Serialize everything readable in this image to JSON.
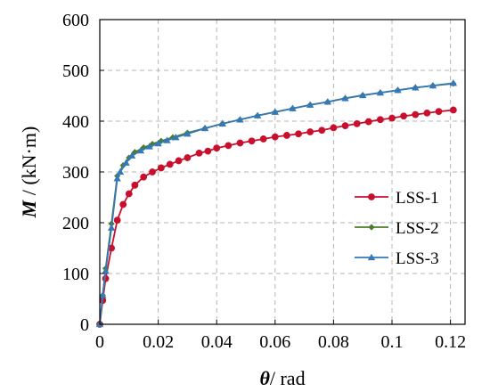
{
  "chart_data": {
    "type": "line",
    "xlabel": {
      "symbol": "θ",
      "rest": "/ rad"
    },
    "ylabel": {
      "symbol": "M",
      "rest": " / (kN·m)"
    },
    "xlim": [
      0,
      0.125
    ],
    "ylim": [
      0,
      600
    ],
    "x_ticks": [
      "0",
      "0.02",
      "0.04",
      "0.06",
      "0.08",
      "0.1",
      "0.12"
    ],
    "x_tick_values": [
      0,
      0.02,
      0.04,
      0.06,
      0.08,
      0.1,
      0.12
    ],
    "y_ticks": [
      "0",
      "100",
      "200",
      "300",
      "400",
      "500",
      "600"
    ],
    "y_tick_values": [
      0,
      100,
      200,
      300,
      400,
      500,
      600
    ],
    "grid": true,
    "legend_position": "right",
    "series": [
      {
        "name": "LSS-1",
        "color": "#c8102e",
        "marker": "circle",
        "x": [
          0,
          0.001,
          0.002,
          0.004,
          0.006,
          0.008,
          0.01,
          0.012,
          0.015,
          0.018,
          0.021,
          0.024,
          0.027,
          0.03,
          0.034,
          0.037,
          0.04,
          0.044,
          0.048,
          0.052,
          0.056,
          0.06,
          0.064,
          0.068,
          0.072,
          0.076,
          0.08,
          0.084,
          0.088,
          0.092,
          0.096,
          0.1,
          0.104,
          0.108,
          0.112,
          0.116,
          0.121
        ],
        "y": [
          0,
          47,
          90,
          150,
          205,
          236,
          257,
          274,
          290,
          300,
          308,
          315,
          322,
          328,
          337,
          341,
          347,
          352,
          357,
          361,
          365,
          369,
          372,
          375,
          379,
          382,
          387,
          391,
          395,
          399,
          403,
          406,
          410,
          413,
          416,
          419,
          422
        ]
      },
      {
        "name": "LSS-2",
        "color": "#4a7c2a",
        "marker": "diamond",
        "x": [
          0,
          0.001,
          0.002,
          0.004,
          0.006,
          0.008,
          0.01,
          0.012,
          0.015,
          0.018,
          0.021,
          0.025,
          0.03,
          0.036,
          0.042,
          0.048,
          0.054,
          0.06,
          0.066,
          0.072,
          0.078,
          0.084,
          0.09,
          0.096,
          0.102,
          0.108,
          0.114,
          0.121
        ],
        "y": [
          0,
          57,
          110,
          198,
          292,
          313,
          328,
          339,
          348,
          355,
          361,
          368,
          377,
          386,
          395,
          403,
          411,
          418,
          425,
          432,
          438,
          445,
          451,
          456,
          461,
          466,
          470,
          474
        ]
      },
      {
        "name": "LSS-3",
        "color": "#3579b8",
        "marker": "triangle",
        "x": [
          0,
          0.001,
          0.002,
          0.004,
          0.006,
          0.007,
          0.009,
          0.011,
          0.014,
          0.017,
          0.02,
          0.023,
          0.026,
          0.03,
          0.036,
          0.042,
          0.048,
          0.054,
          0.06,
          0.066,
          0.072,
          0.078,
          0.084,
          0.09,
          0.096,
          0.102,
          0.108,
          0.114,
          0.121
        ],
        "y": [
          0,
          57,
          105,
          190,
          287,
          300,
          318,
          332,
          342,
          350,
          356,
          362,
          368,
          375,
          386,
          395,
          403,
          411,
          418,
          425,
          432,
          438,
          445,
          451,
          456,
          461,
          466,
          470,
          475
        ]
      }
    ]
  }
}
